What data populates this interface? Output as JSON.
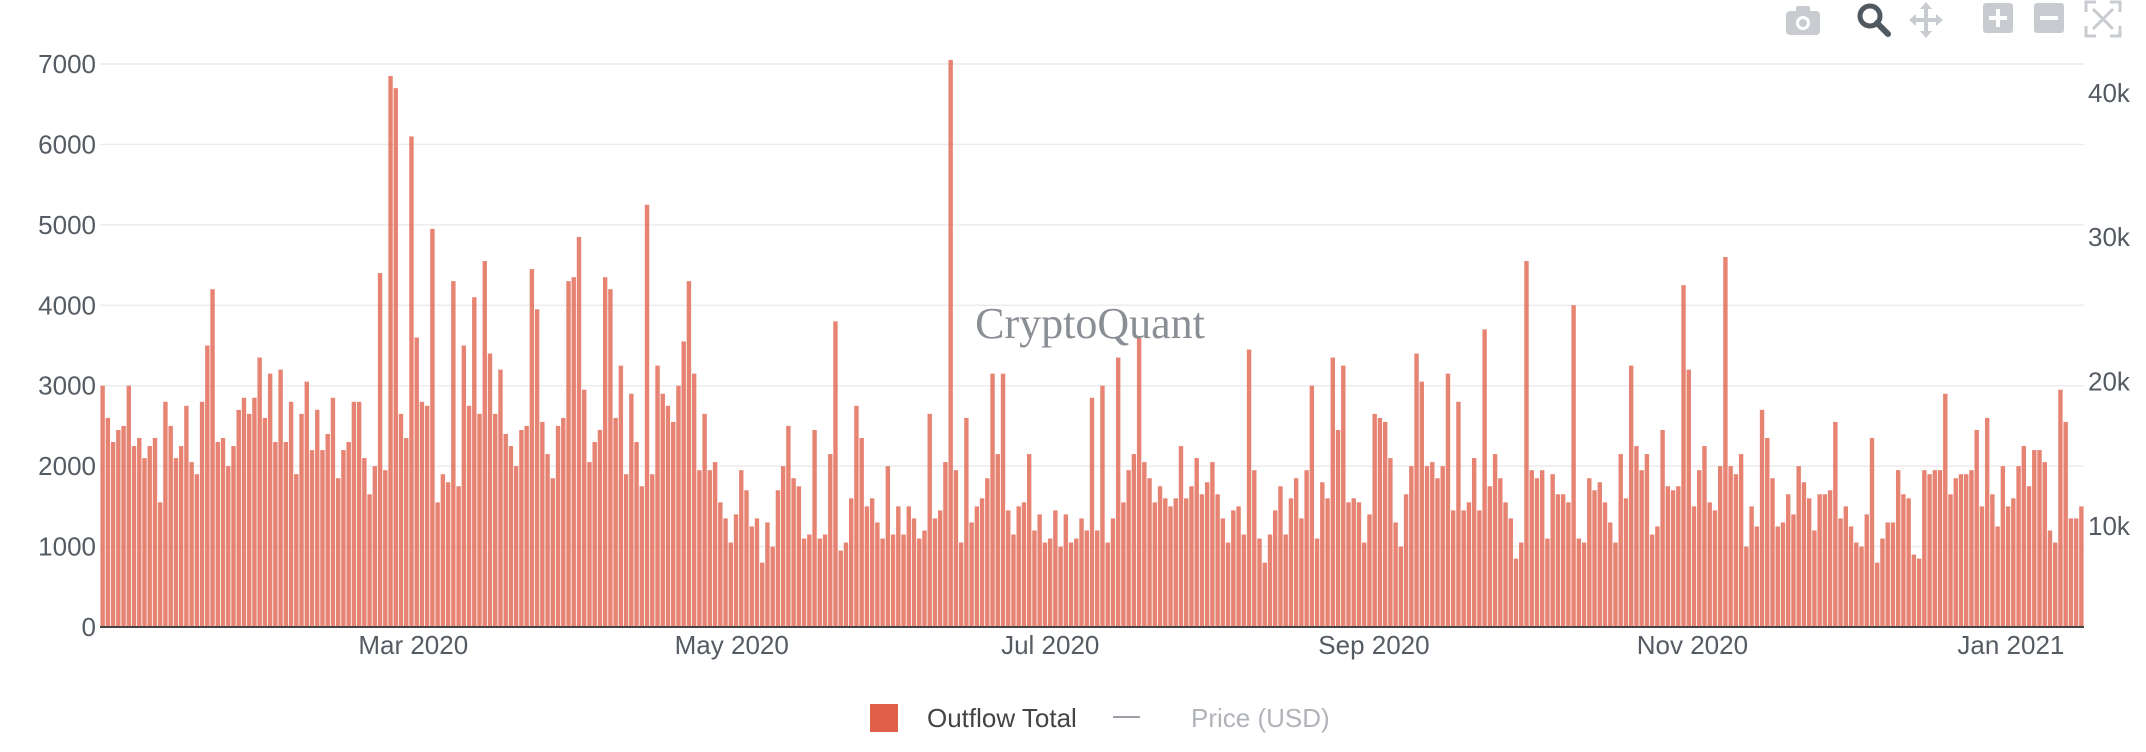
{
  "watermark": "CryptoQuant",
  "toolbar": {
    "icons": [
      "camera-icon",
      "zoom-icon",
      "pan-icon",
      "zoom-in-icon",
      "zoom-out-icon",
      "autoscale-icon"
    ]
  },
  "legend": [
    {
      "label": "Outflow Total",
      "color": "#e0604a"
    },
    {
      "label": "Price (USD)",
      "color": "#9aa0a6"
    }
  ],
  "chart_data": {
    "type": "bar",
    "x_start": "2020-01-01",
    "x_end": "2021-01-15",
    "x_ticks": [
      {
        "date": "2020-03-01",
        "label": "Mar 2020"
      },
      {
        "date": "2020-05-01",
        "label": "May 2020"
      },
      {
        "date": "2020-07-01",
        "label": "Jul 2020"
      },
      {
        "date": "2020-09-01",
        "label": "Sep 2020"
      },
      {
        "date": "2020-11-01",
        "label": "Nov 2020"
      },
      {
        "date": "2021-01-01",
        "label": "Jan 2021"
      }
    ],
    "ylim": [
      0,
      7000
    ],
    "y_ticks": [
      "0",
      "1000",
      "2000",
      "3000",
      "4000",
      "5000",
      "6000",
      "7000"
    ],
    "y2lim": [
      3000,
      42000
    ],
    "y2_ticks": [
      {
        "value": 10000,
        "label": "10k"
      },
      {
        "value": 20000,
        "label": "20k"
      },
      {
        "value": 30000,
        "label": "30k"
      },
      {
        "value": 40000,
        "label": "40k"
      }
    ],
    "grid": true,
    "legend_position": "bottom-center",
    "series": [
      {
        "name": "Outflow Total",
        "color": "#e0604a",
        "values": [
          3000,
          2600,
          2300,
          2450,
          2500,
          3000,
          2250,
          2350,
          2100,
          2250,
          2350,
          1550,
          2800,
          2500,
          2100,
          2250,
          2750,
          2050,
          1900,
          2800,
          3500,
          4200,
          2300,
          2350,
          2000,
          2250,
          2700,
          2850,
          2650,
          2850,
          3350,
          2600,
          3150,
          2300,
          3200,
          2300,
          2800,
          1900,
          2650,
          3050,
          2200,
          2700,
          2200,
          2400,
          2850,
          1850,
          2200,
          2300,
          2800,
          2800,
          2100,
          1650,
          2000,
          4400,
          1950,
          6850,
          6700,
          2650,
          2350,
          6100,
          3600,
          2800,
          2750,
          4950,
          1550,
          1900,
          1800,
          4300,
          1750,
          3500,
          2750,
          4100,
          2650,
          4550,
          3400,
          2650,
          3200,
          2400,
          2250,
          2000,
          2450,
          2500,
          4450,
          3950,
          2550,
          2150,
          1850,
          2500,
          2600,
          4300,
          4350,
          4850,
          2950,
          2050,
          2300,
          2450,
          4350,
          4200,
          2600,
          3250,
          1900,
          2900,
          2300,
          1750,
          5250,
          1900,
          3250,
          2900,
          2750,
          2550,
          3000,
          3550,
          4300,
          3150,
          1950,
          2650,
          1950,
          2050,
          1550,
          1350,
          1050,
          1400,
          1950,
          1700,
          1250,
          1350,
          800,
          1300,
          1000,
          1700,
          2000,
          2500,
          1850,
          1750,
          1100,
          1150,
          2450,
          1100,
          1150,
          2150,
          3800,
          950,
          1050,
          1600,
          2750,
          2350,
          1500,
          1600,
          1300,
          1100,
          2000,
          1150,
          1500,
          1150,
          1500,
          1350,
          1100,
          1200,
          2650,
          1350,
          1450,
          2050,
          7050,
          1950,
          1050,
          2600,
          1300,
          1500,
          1600,
          1850,
          3150,
          2150,
          3150,
          1450,
          1150,
          1500,
          1550,
          2150,
          1200,
          1400,
          1050,
          1100,
          1450,
          1000,
          1400,
          1050,
          1100,
          1350,
          1200,
          2850,
          1200,
          3000,
          1050,
          1350,
          3350,
          1550,
          1950,
          2150,
          3600,
          2050,
          1850,
          1550,
          1750,
          1600,
          1500,
          1600,
          2250,
          1600,
          1750,
          2100,
          1650,
          1800,
          2050,
          1650,
          1350,
          1050,
          1450,
          1500,
          1150,
          3450,
          1950,
          1100,
          800,
          1150,
          1450,
          1750,
          1150,
          1600,
          1850,
          1350,
          1950,
          3000,
          1100,
          1800,
          1600,
          3350,
          2450,
          3250,
          1550,
          1600,
          1550,
          1050,
          1400,
          2650,
          2600,
          2550,
          2100,
          1300,
          1000,
          1650,
          2000,
          3400,
          3050,
          2000,
          2050,
          1850,
          2000,
          3150,
          1450,
          2800,
          1450,
          1550,
          2100,
          1450,
          3700,
          1750,
          2150,
          1850,
          1550,
          1350,
          850,
          1050,
          4550,
          1950,
          1850,
          1950,
          1100,
          1900,
          1650,
          1650,
          1550,
          4000,
          1100,
          1050,
          1850,
          1700,
          1800,
          1550,
          1300,
          1050,
          2150,
          1600,
          3250,
          2250,
          1950,
          2150,
          1150,
          1250,
          2450,
          1750,
          1700,
          1750,
          4250,
          3200,
          1500,
          1950,
          2250,
          1550,
          1450,
          2000,
          4600,
          2000,
          1900,
          2150,
          1000,
          1500,
          1250,
          2700,
          2350,
          1850,
          1250,
          1300,
          1650,
          1400,
          2000,
          1800,
          1600,
          1200,
          1650,
          1650,
          1700,
          2550,
          1350,
          1500,
          1250,
          1050,
          1000,
          1400,
          2350,
          800,
          1100,
          1300,
          1300,
          1950,
          1650,
          1600,
          900,
          850,
          1950,
          1900,
          1950,
          1950,
          2900,
          1650,
          1850,
          1900,
          1900,
          1950,
          2450,
          1500,
          2600,
          1650,
          1250,
          2000,
          1500,
          1600,
          2000,
          2250,
          1750,
          2200,
          2200,
          2050,
          1200,
          1050,
          2950,
          2550,
          1350,
          1350,
          1500
        ]
      },
      {
        "name": "Price (USD)",
        "color": "#9aa0a6",
        "values": []
      }
    ]
  }
}
